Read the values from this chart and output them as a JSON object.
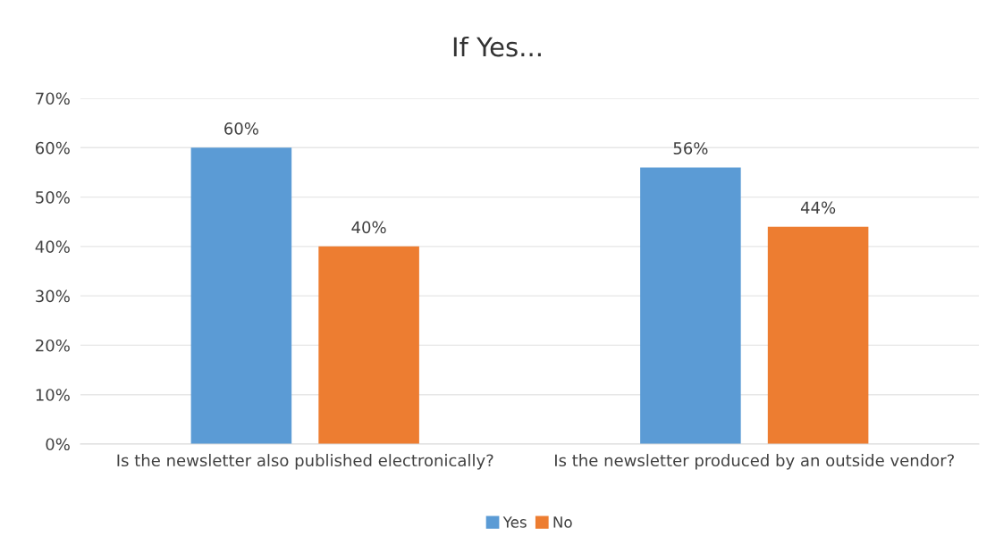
{
  "chart_data": {
    "type": "bar",
    "title": "If Yes...",
    "categories": [
      "Is the newsletter also published electronically?",
      "Is the newsletter produced by an outside vendor?"
    ],
    "series": [
      {
        "name": "Yes",
        "color": "#5b9bd5",
        "values": [
          60,
          56
        ],
        "value_labels": [
          "60%",
          "56%"
        ]
      },
      {
        "name": "No",
        "color": "#ed7d31",
        "values": [
          40,
          44
        ],
        "value_labels": [
          "40%",
          "44%"
        ]
      }
    ],
    "ylim": [
      0,
      70
    ],
    "yticks": [
      {
        "value": 0,
        "label": "0%"
      },
      {
        "value": 10,
        "label": "10%"
      },
      {
        "value": 20,
        "label": "20%"
      },
      {
        "value": 30,
        "label": "30%"
      },
      {
        "value": 40,
        "label": "40%"
      },
      {
        "value": 50,
        "label": "50%"
      },
      {
        "value": 60,
        "label": "60%"
      },
      {
        "value": 70,
        "label": "70%"
      }
    ],
    "grid": "y",
    "legend": "bottom"
  }
}
